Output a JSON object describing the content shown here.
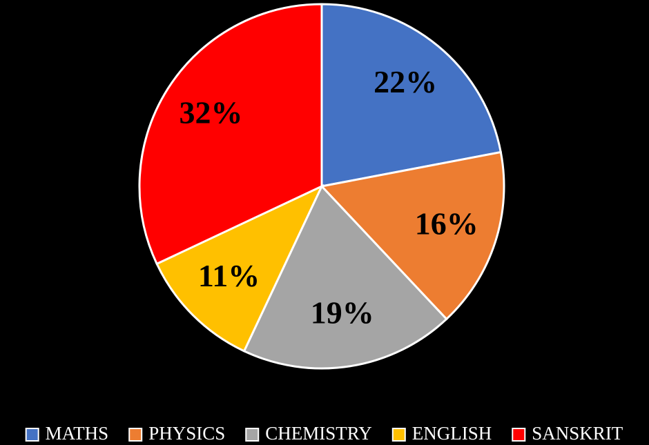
{
  "chart_data": {
    "type": "pie",
    "categories": [
      "MATHS",
      "PHYSICS",
      "CHEMISTRY",
      "ENGLISH",
      "SANSKRIT"
    ],
    "values": [
      22,
      16,
      19,
      11,
      32
    ],
    "value_labels": [
      "22%",
      "16%",
      "19%",
      "11%",
      "32%"
    ],
    "colors": [
      "#4472c4",
      "#ed7d31",
      "#a5a5a5",
      "#ffc000",
      "#ff0000"
    ],
    "legend": "bottom"
  }
}
